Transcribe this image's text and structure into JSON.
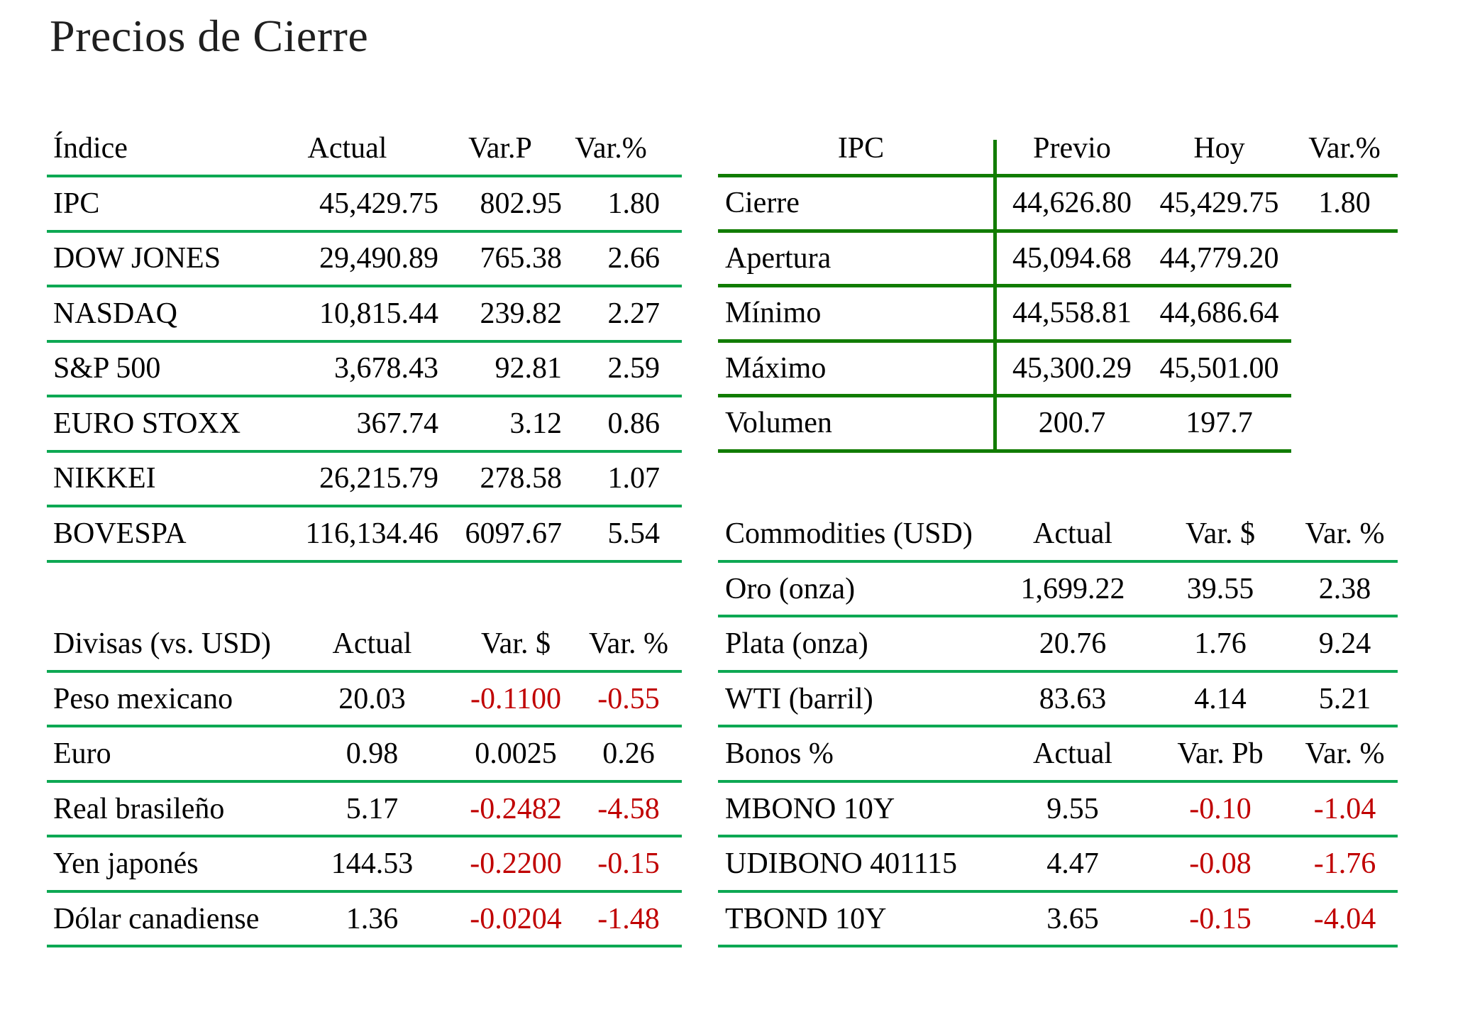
{
  "page": {
    "title": "Precios de Cierre"
  },
  "colors": {
    "rule_green_bright": "#0da853",
    "rule_green_dark": "#117c00",
    "negative_red": "#c00000",
    "text": "#000000",
    "background": "#ffffff"
  },
  "tables": {
    "indices": {
      "headers": [
        "Índice",
        "Actual",
        "Var.P",
        "Var.%"
      ],
      "rows": [
        [
          "IPC",
          "45,429.75",
          "802.95",
          "1.80"
        ],
        [
          "DOW JONES",
          "29,490.89",
          "765.38",
          "2.66"
        ],
        [
          "NASDAQ",
          "10,815.44",
          "239.82",
          "2.27"
        ],
        [
          "S&P 500",
          "3,678.43",
          "92.81",
          "2.59"
        ],
        [
          "EURO STOXX",
          "367.74",
          "3.12",
          "0.86"
        ],
        [
          "NIKKEI",
          "26,215.79",
          "278.58",
          "1.07"
        ],
        [
          "BOVESPA",
          "116,134.46",
          "6097.67",
          "5.54"
        ]
      ]
    },
    "ipc": {
      "headers": [
        "IPC",
        "Previo",
        "Hoy",
        "Var.%"
      ],
      "rows": [
        [
          "Cierre",
          "44,626.80",
          "45,429.75",
          "1.80"
        ],
        [
          "Apertura",
          "45,094.68",
          "44,779.20",
          ""
        ],
        [
          "Mínimo",
          "44,558.81",
          "44,686.64",
          ""
        ],
        [
          "Máximo",
          "45,300.29",
          "45,501.00",
          ""
        ],
        [
          "Volumen",
          "200.7",
          "197.7",
          ""
        ]
      ]
    },
    "divisas": {
      "headers": [
        "Divisas (vs. USD)",
        "Actual",
        "Var. $",
        "Var. %"
      ],
      "rows": [
        [
          "Peso mexicano",
          "20.03",
          "-0.1100",
          "-0.55"
        ],
        [
          "Euro",
          "0.98",
          "0.0025",
          "0.26"
        ],
        [
          "Real brasileño",
          "5.17",
          "-0.2482",
          "-4.58"
        ],
        [
          "Yen japonés",
          "144.53",
          "-0.2200",
          "-0.15"
        ],
        [
          "Dólar canadiense",
          "1.36",
          "-0.0204",
          "-1.48"
        ]
      ]
    },
    "commodities": {
      "headers": [
        "Commodities (USD)",
        "Actual",
        "Var. $",
        "Var. %"
      ],
      "rows": [
        [
          "Oro (onza)",
          "1,699.22",
          "39.55",
          "2.38"
        ],
        [
          "Plata (onza)",
          "20.76",
          "1.76",
          "9.24"
        ],
        [
          "WTI (barril)",
          "83.63",
          "4.14",
          "5.21"
        ]
      ]
    },
    "bonos": {
      "headers": [
        "Bonos %",
        "Actual",
        "Var. Pb",
        "Var. %"
      ],
      "rows": [
        [
          "MBONO 10Y",
          "9.55",
          "-0.10",
          "-1.04"
        ],
        [
          "UDIBONO 401115",
          "4.47",
          "-0.08",
          "-1.76"
        ],
        [
          "TBOND 10Y",
          "3.65",
          "-0.15",
          "-4.04"
        ]
      ]
    }
  }
}
